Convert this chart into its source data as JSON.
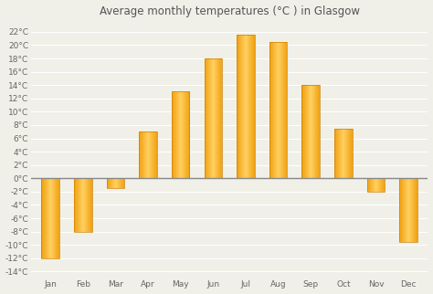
{
  "title": "Average monthly temperatures (°C ) in Glasgow",
  "months": [
    "Jan",
    "Feb",
    "Mar",
    "Apr",
    "May",
    "Jun",
    "Jul",
    "Aug",
    "Sep",
    "Oct",
    "Nov",
    "Dec"
  ],
  "values": [
    -12,
    -8,
    -1.5,
    7,
    13,
    18,
    21.5,
    20.5,
    14,
    7.5,
    -2,
    -9.5
  ],
  "bar_color_dark": "#F0A010",
  "bar_color_mid": "#FFBB20",
  "bar_color_light": "#FFD060",
  "bar_edge_color": "#D08000",
  "background_color": "#f0f0e8",
  "grid_color": "#ffffff",
  "zero_line_color": "#888888",
  "yticks": [
    -14,
    -12,
    -10,
    -8,
    -6,
    -4,
    -2,
    0,
    2,
    4,
    6,
    8,
    10,
    12,
    14,
    16,
    18,
    20,
    22
  ],
  "ylim": [
    -15,
    23.5
  ],
  "title_fontsize": 8.5,
  "tick_fontsize": 6.5,
  "figsize": [
    4.74,
    3.22
  ],
  "dpi": 100
}
